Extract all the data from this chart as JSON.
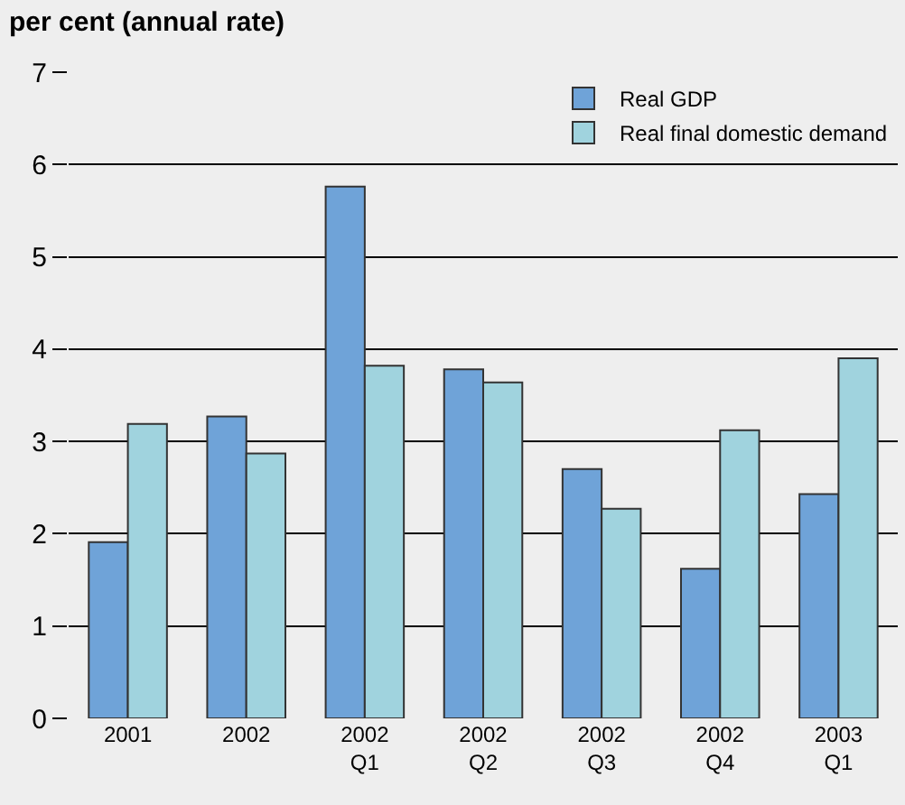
{
  "chart_data": {
    "type": "bar",
    "title": "per cent (annual rate)",
    "categories": [
      "2001",
      "2002",
      "2002 Q1",
      "2002 Q2",
      "2002 Q3",
      "2002 Q4",
      "2003 Q1"
    ],
    "series": [
      {
        "name": "Real GDP",
        "color": "#6fa3d8",
        "values": [
          1.91,
          3.27,
          5.76,
          3.78,
          2.7,
          1.62,
          2.43
        ]
      },
      {
        "name": "Real final domestic demand",
        "color": "#a0d3de",
        "values": [
          3.19,
          2.87,
          3.82,
          3.64,
          2.27,
          3.12,
          3.9
        ]
      }
    ],
    "ylim": [
      0,
      7
    ],
    "yticks": [
      0,
      1,
      2,
      3,
      4,
      5,
      6,
      7
    ],
    "grid": "y",
    "legend": "top right"
  }
}
